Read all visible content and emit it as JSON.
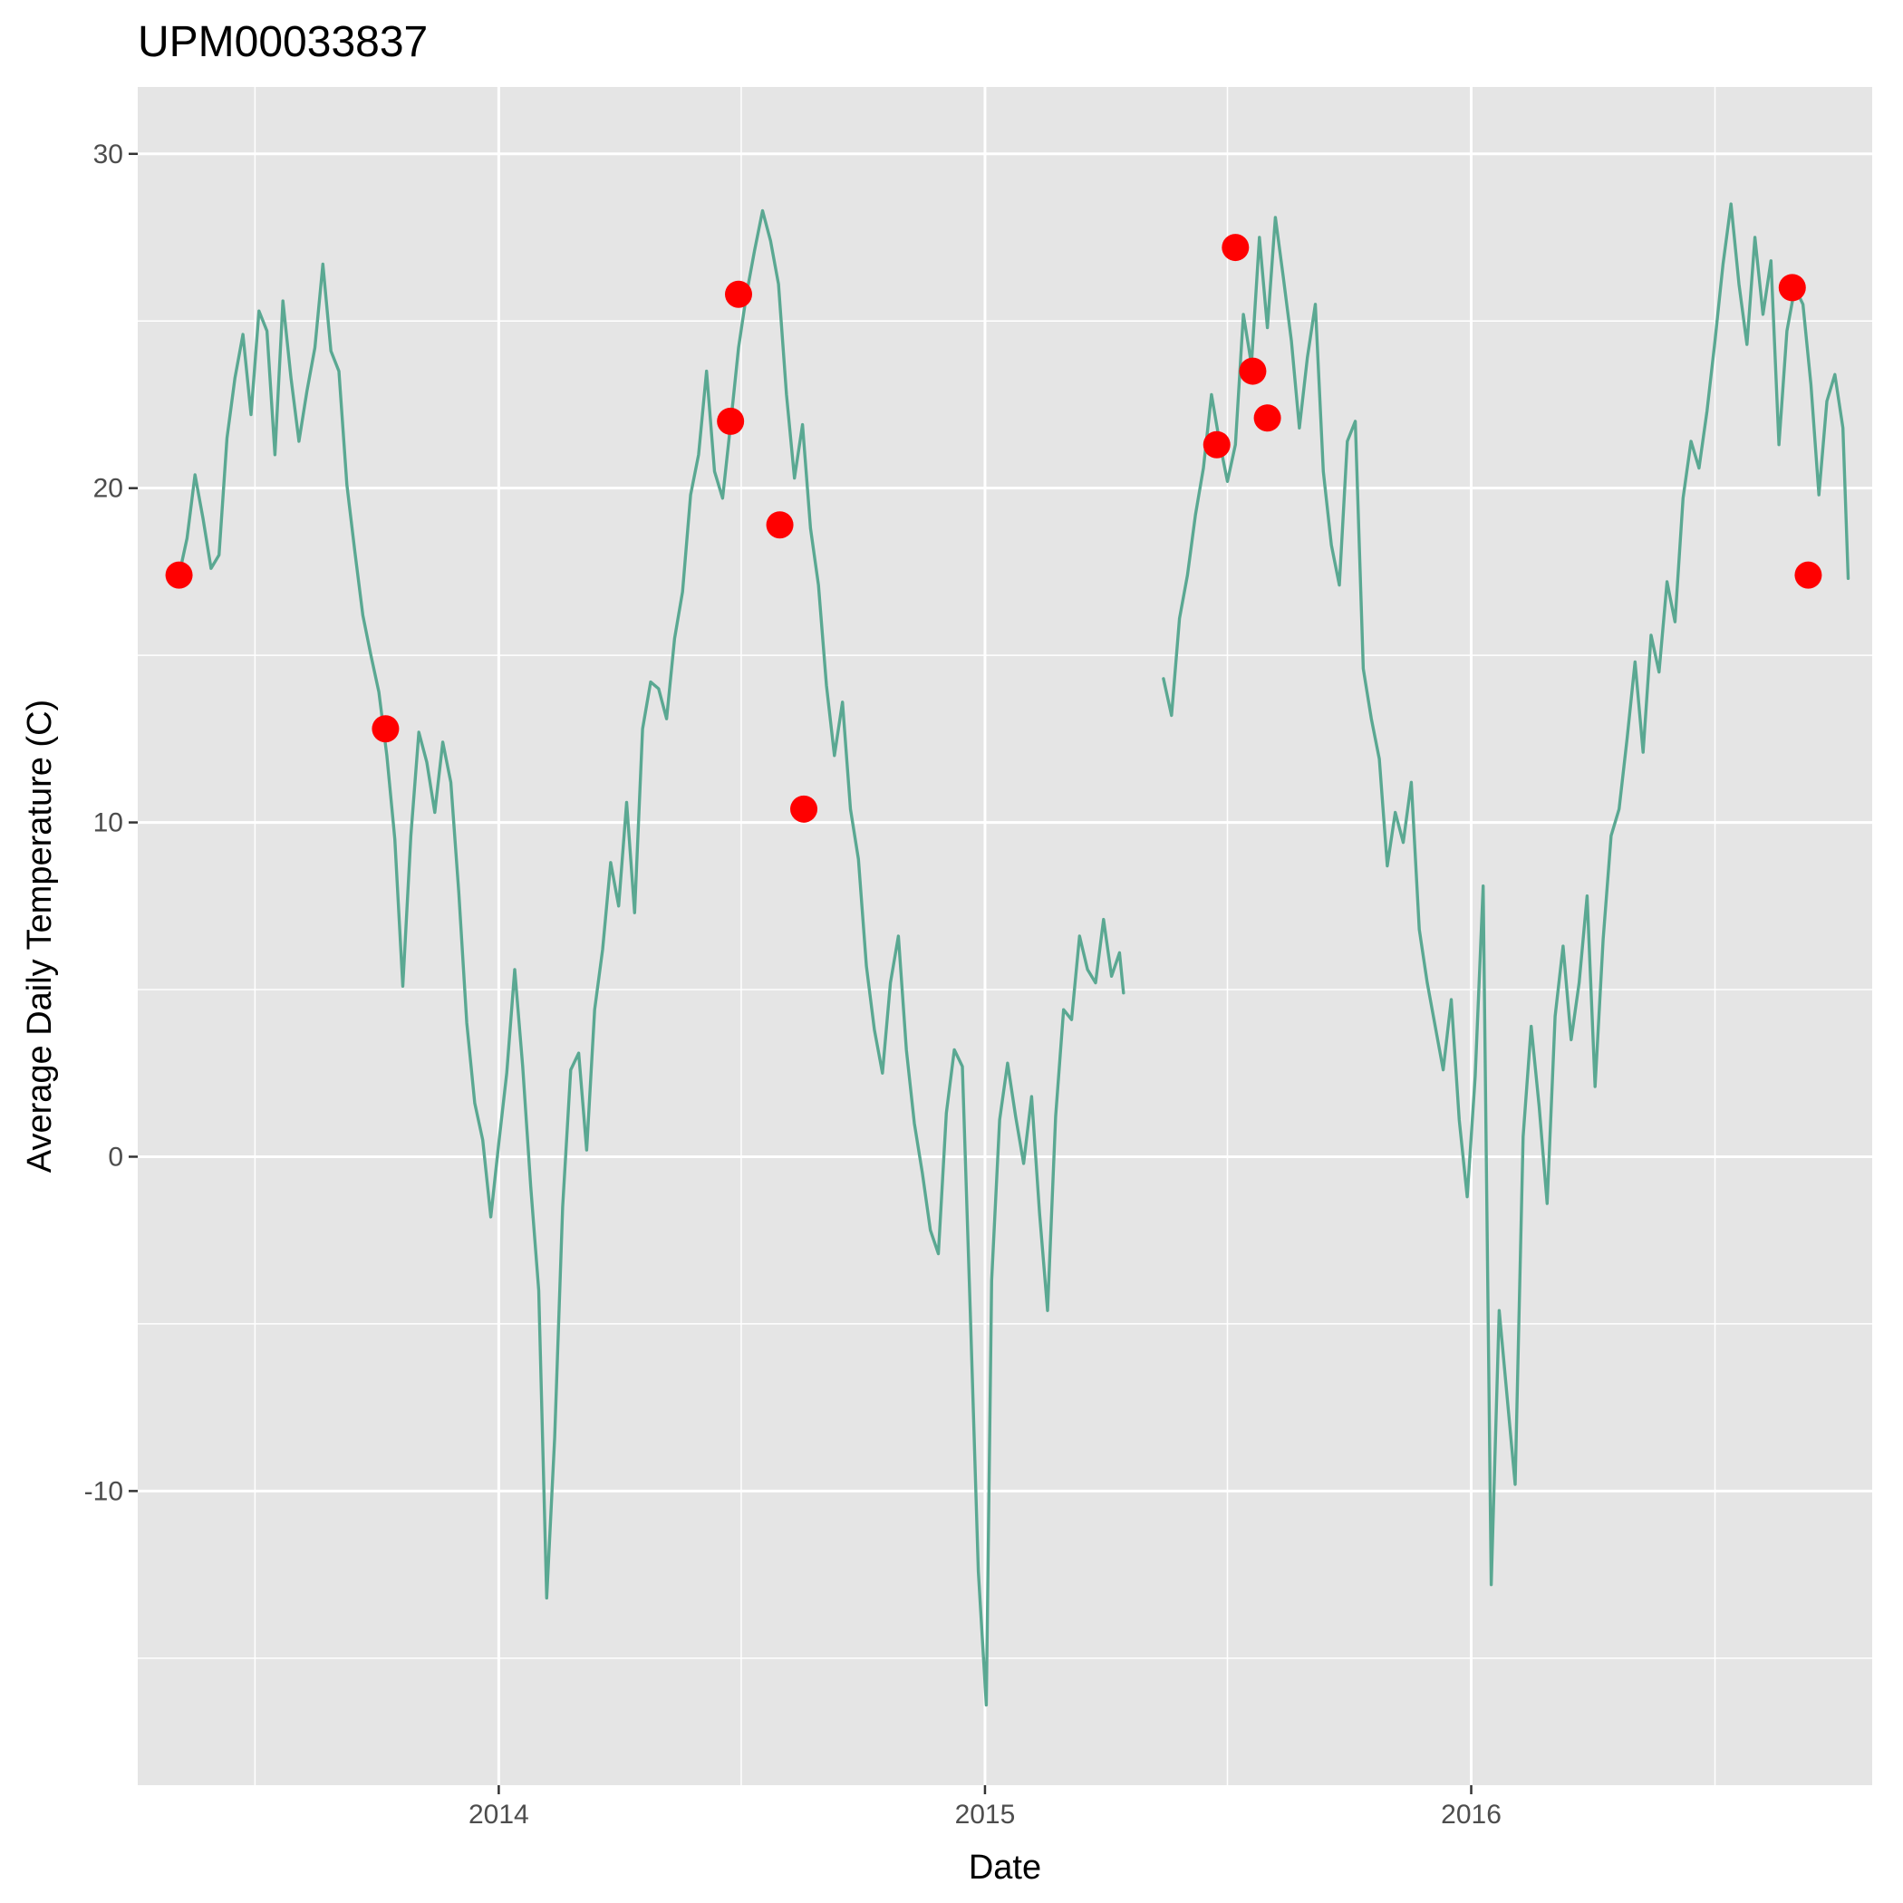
{
  "chart_data": {
    "type": "line",
    "title": "UPM00033837",
    "xlabel": "Date",
    "ylabel": "Average Daily Temperature (C)",
    "x_tick_labels": [
      "2014",
      "2015",
      "2016"
    ],
    "y_tick_labels": [
      "-10",
      "0",
      "10",
      "20",
      "30"
    ],
    "x_ticks": [
      "2014-01-01",
      "2015-01-01",
      "2016-01-01"
    ],
    "y_ticks": [
      -10,
      0,
      10,
      20,
      30
    ],
    "xlim": [
      "2013-04-05",
      "2016-10-28"
    ],
    "ylim": [
      -18.8,
      32.0
    ],
    "grid": true,
    "legend": "none",
    "colors": {
      "line": "#5aa892",
      "points": "#ff0000",
      "panel": "#e5e5e5",
      "grid": "#ffffff"
    },
    "series": [
      {
        "type": "line",
        "segments": [
          {
            "x": [
              "2013-05-06",
              "2013-05-12",
              "2013-05-18",
              "2013-05-24",
              "2013-05-30",
              "2013-06-05",
              "2013-06-11",
              "2013-06-17",
              "2013-06-23",
              "2013-06-29",
              "2013-07-05",
              "2013-07-11",
              "2013-07-17",
              "2013-07-23",
              "2013-07-29",
              "2013-08-04",
              "2013-08-10",
              "2013-08-16",
              "2013-08-22",
              "2013-08-28",
              "2013-09-03",
              "2013-09-09",
              "2013-09-15",
              "2013-09-21",
              "2013-09-27",
              "2013-10-03",
              "2013-10-09",
              "2013-10-15",
              "2013-10-21",
              "2013-10-27",
              "2013-11-02",
              "2013-11-08",
              "2013-11-14",
              "2013-11-20",
              "2013-11-26",
              "2013-12-02",
              "2013-12-08",
              "2013-12-14",
              "2013-12-20",
              "2013-12-26",
              "2014-01-01",
              "2014-01-07",
              "2014-01-13",
              "2014-01-19",
              "2014-01-25",
              "2014-01-31",
              "2014-02-06",
              "2014-02-12",
              "2014-02-18",
              "2014-02-24",
              "2014-03-02",
              "2014-03-08",
              "2014-03-14",
              "2014-03-20",
              "2014-03-26",
              "2014-04-01",
              "2014-04-07",
              "2014-04-13",
              "2014-04-19",
              "2014-04-25",
              "2014-05-01",
              "2014-05-07",
              "2014-05-13",
              "2014-05-19",
              "2014-05-25",
              "2014-05-31",
              "2014-06-06",
              "2014-06-12",
              "2014-06-18",
              "2014-06-24",
              "2014-06-30",
              "2014-07-06",
              "2014-07-12",
              "2014-07-18",
              "2014-07-24",
              "2014-07-30",
              "2014-08-05",
              "2014-08-11",
              "2014-08-17",
              "2014-08-23",
              "2014-08-29",
              "2014-09-04",
              "2014-09-10",
              "2014-09-16",
              "2014-09-22",
              "2014-09-28",
              "2014-10-04",
              "2014-10-10",
              "2014-10-16",
              "2014-10-22",
              "2014-10-28",
              "2014-11-03",
              "2014-11-09",
              "2014-11-15",
              "2014-11-21",
              "2014-11-27",
              "2014-12-03",
              "2014-12-09",
              "2014-12-15",
              "2014-12-21",
              "2014-12-27",
              "2015-01-02",
              "2015-01-06",
              "2015-01-12",
              "2015-01-18",
              "2015-01-24",
              "2015-01-30",
              "2015-02-05",
              "2015-02-11",
              "2015-02-17",
              "2015-02-23",
              "2015-03-01",
              "2015-03-07",
              "2015-03-13",
              "2015-03-19",
              "2015-03-25",
              "2015-03-31",
              "2015-04-06",
              "2015-04-12",
              "2015-04-15"
            ],
            "y": [
              17.4,
              18.5,
              20.4,
              19.1,
              17.6,
              18.0,
              21.5,
              23.3,
              24.6,
              22.2,
              25.3,
              24.7,
              21.0,
              25.6,
              23.3,
              21.4,
              22.9,
              24.2,
              26.7,
              24.1,
              23.5,
              20.1,
              18.1,
              16.2,
              15.0,
              13.9,
              12.0,
              9.5,
              5.1,
              9.6,
              12.7,
              11.8,
              10.3,
              12.4,
              11.2,
              7.9,
              4.0,
              1.6,
              0.5,
              -1.8,
              0.4,
              2.5,
              5.6,
              2.7,
              -0.9,
              -4.0,
              -13.2,
              -8.4,
              -1.5,
              2.6,
              3.1,
              0.2,
              4.4,
              6.2,
              8.8,
              7.5,
              10.6,
              7.3,
              12.8,
              14.2,
              14.0,
              13.1,
              15.5,
              16.9,
              19.8,
              21.0,
              23.5,
              20.5,
              19.7,
              21.9,
              24.2,
              25.8,
              27.1,
              28.3,
              27.4,
              26.1,
              22.8,
              20.3,
              21.9,
              18.8,
              17.1,
              14.1,
              12.0,
              13.6,
              10.4,
              8.9,
              5.7,
              3.8,
              2.5,
              5.2,
              6.6,
              3.2,
              1.0,
              -0.5,
              -2.2,
              -2.9,
              1.3,
              3.2,
              2.7,
              -4.7,
              -12.4,
              -16.4,
              -3.7,
              1.1,
              2.8,
              1.2,
              -0.2,
              1.8,
              -1.7,
              -4.6,
              1.2,
              4.4,
              4.1,
              6.6,
              5.6,
              5.2,
              7.1,
              5.4,
              6.1,
              4.9
            ]
          },
          {
            "x": [
              "2015-05-15",
              "2015-05-21",
              "2015-05-27",
              "2015-06-02",
              "2015-06-08",
              "2015-06-14",
              "2015-06-20",
              "2015-06-26",
              "2015-07-02",
              "2015-07-08",
              "2015-07-14",
              "2015-07-20",
              "2015-07-26",
              "2015-08-01",
              "2015-08-07",
              "2015-08-13",
              "2015-08-19",
              "2015-08-25",
              "2015-08-31",
              "2015-09-06",
              "2015-09-12",
              "2015-09-18",
              "2015-09-24",
              "2015-09-30",
              "2015-10-06",
              "2015-10-12",
              "2015-10-18",
              "2015-10-24",
              "2015-10-30",
              "2015-11-05",
              "2015-11-11",
              "2015-11-17",
              "2015-11-23",
              "2015-11-29",
              "2015-12-05",
              "2015-12-11",
              "2015-12-17",
              "2015-12-23",
              "2015-12-29",
              "2016-01-04",
              "2016-01-10",
              "2016-01-16",
              "2016-01-22",
              "2016-01-28",
              "2016-02-03",
              "2016-02-09",
              "2016-02-15",
              "2016-02-21",
              "2016-02-27",
              "2016-03-04",
              "2016-03-10",
              "2016-03-16",
              "2016-03-22",
              "2016-03-28",
              "2016-04-03",
              "2016-04-09",
              "2016-04-15",
              "2016-04-21",
              "2016-04-27",
              "2016-05-03",
              "2016-05-09",
              "2016-05-15",
              "2016-05-21",
              "2016-05-27",
              "2016-06-02",
              "2016-06-08",
              "2016-06-14",
              "2016-06-20",
              "2016-06-26",
              "2016-07-02",
              "2016-07-08",
              "2016-07-14",
              "2016-07-20",
              "2016-07-26",
              "2016-08-01",
              "2016-08-07",
              "2016-08-13",
              "2016-08-19",
              "2016-08-25",
              "2016-08-31",
              "2016-09-06",
              "2016-09-12",
              "2016-09-18",
              "2016-09-24",
              "2016-09-30",
              "2016-10-06",
              "2016-10-10"
            ],
            "y": [
              14.3,
              13.2,
              16.1,
              17.4,
              19.2,
              20.6,
              22.8,
              21.4,
              20.2,
              21.3,
              25.2,
              23.7,
              27.5,
              24.8,
              28.1,
              26.3,
              24.4,
              21.8,
              23.9,
              25.5,
              20.5,
              18.3,
              17.1,
              21.4,
              22.0,
              14.6,
              13.1,
              11.9,
              8.7,
              10.3,
              9.4,
              11.2,
              6.8,
              5.2,
              3.9,
              2.6,
              4.7,
              1.1,
              -1.2,
              2.4,
              8.1,
              -12.8,
              -4.6,
              -7.2,
              -9.8,
              0.6,
              3.9,
              1.5,
              -1.4,
              4.2,
              6.3,
              3.5,
              5.2,
              7.8,
              2.1,
              6.5,
              9.6,
              10.4,
              12.5,
              14.8,
              12.1,
              15.6,
              14.5,
              17.2,
              16.0,
              19.7,
              21.4,
              20.6,
              22.3,
              24.4,
              26.7,
              28.5,
              26.1,
              24.3,
              27.5,
              25.2,
              26.8,
              21.3,
              24.7,
              26.0,
              25.5,
              23.1,
              19.8,
              22.6,
              23.4,
              21.8,
              17.3
            ]
          }
        ]
      },
      {
        "type": "scatter",
        "x": [
          "2013-05-06",
          "2013-10-08",
          "2014-06-24",
          "2014-06-30",
          "2014-07-31",
          "2014-08-18",
          "2015-06-24",
          "2015-07-08",
          "2015-07-21",
          "2015-08-01",
          "2016-08-29",
          "2016-09-10"
        ],
        "y": [
          17.4,
          12.8,
          22.0,
          25.8,
          18.9,
          10.4,
          21.3,
          27.2,
          23.5,
          22.1,
          26.0,
          17.4
        ]
      }
    ]
  }
}
